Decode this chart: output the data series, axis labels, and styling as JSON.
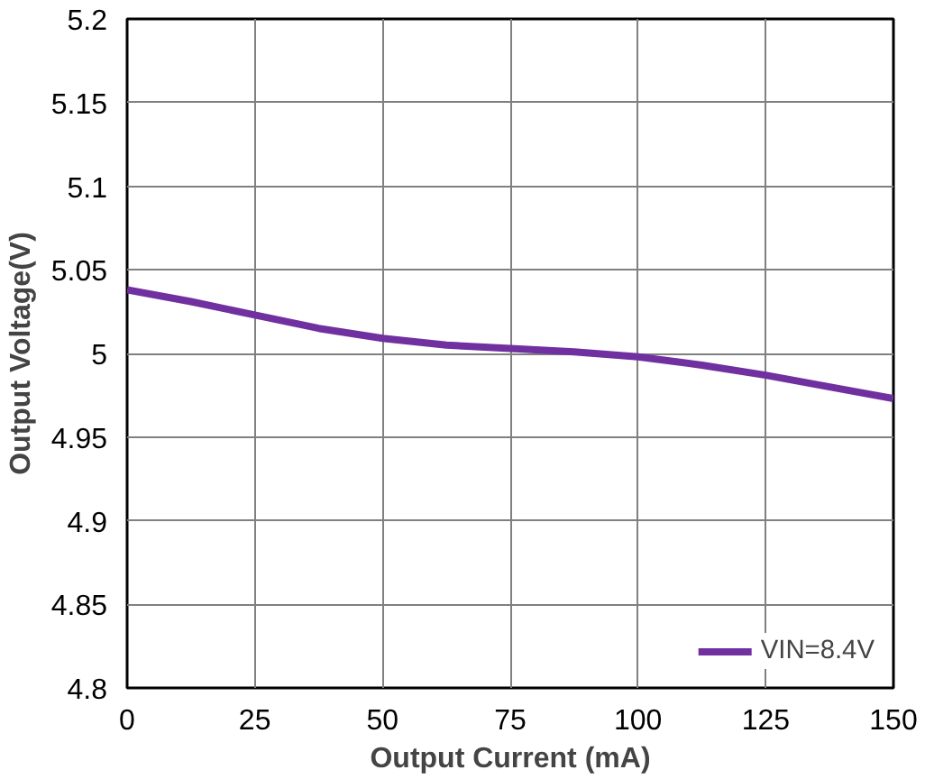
{
  "chart_data": {
    "type": "line",
    "xlabel": "Output Current (mA)",
    "ylabel": "Output Voltage(V)",
    "xlim": [
      0,
      150
    ],
    "ylim": [
      4.8,
      5.2
    ],
    "xticks": [
      0,
      25,
      50,
      75,
      100,
      125,
      150
    ],
    "yticks": [
      4.8,
      4.85,
      4.9,
      4.95,
      5,
      5.05,
      5.1,
      5.15,
      5.2
    ],
    "series": [
      {
        "name": "VIN=8.4V",
        "color": "#7030a0",
        "x": [
          0,
          12.5,
          25,
          37.5,
          50,
          62.5,
          75,
          87.5,
          100,
          112.5,
          125,
          137.5,
          150
        ],
        "values": [
          5.038,
          5.031,
          5.023,
          5.015,
          5.009,
          5.005,
          5.003,
          5.001,
          4.998,
          4.993,
          4.987,
          4.98,
          4.973
        ]
      }
    ],
    "grid": true,
    "legend": "bottom right",
    "line_style": "solid",
    "marker": "none"
  }
}
